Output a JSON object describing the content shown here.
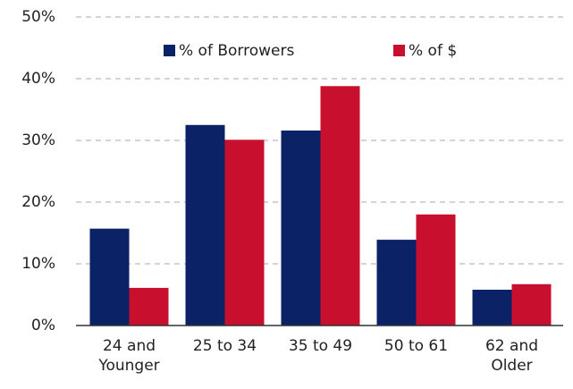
{
  "chart_data": {
    "type": "bar",
    "categories": [
      "24 and Younger",
      "25 to 34",
      "35 to 49",
      "50 to 61",
      "62 and Older"
    ],
    "series": [
      {
        "name": "% of Borrowers",
        "color": "#0c2266",
        "values": [
          15.7,
          32.5,
          31.6,
          13.9,
          5.8
        ]
      },
      {
        "name": "% of $",
        "color": "#c8102e",
        "values": [
          6.1,
          30.1,
          38.8,
          18.0,
          6.7
        ]
      }
    ],
    "ylim": [
      0,
      50
    ],
    "yticks": [
      {
        "value": 0,
        "label": "0%"
      },
      {
        "value": 10,
        "label": "10%"
      },
      {
        "value": 20,
        "label": "20%"
      },
      {
        "value": 30,
        "label": "30%"
      },
      {
        "value": 40,
        "label": "40%"
      },
      {
        "value": 50,
        "label": "50%"
      }
    ],
    "grid": true
  }
}
